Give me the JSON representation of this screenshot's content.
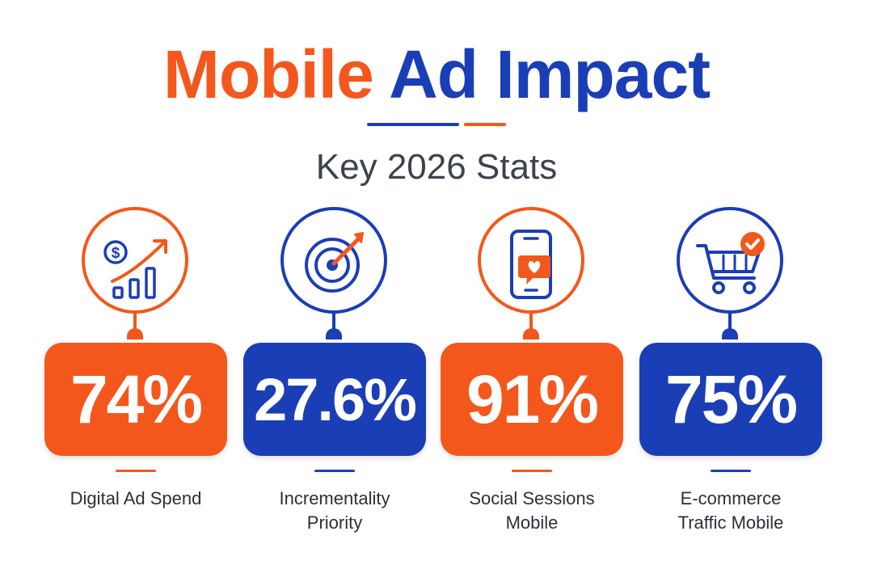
{
  "header": {
    "title_word1": "Mobile",
    "title_word2": "Ad Impact",
    "subtitle": "Key 2026 Stats"
  },
  "colors": {
    "orange": "#F4571B",
    "blue": "#1A3EB5",
    "text": "#2b3038"
  },
  "stats": [
    {
      "value": "74%",
      "label": "Digital Ad Spend",
      "icon": "dollar-growth-chart-icon",
      "color": "orange"
    },
    {
      "value": "27.6%",
      "label": "Incrementality\nPriority",
      "icon": "target-arrow-icon",
      "color": "blue"
    },
    {
      "value": "91%",
      "label": "Social Sessions\nMobile",
      "icon": "phone-heart-icon",
      "color": "orange"
    },
    {
      "value": "75%",
      "label": "E-commerce\nTraffic Mobile",
      "icon": "cart-check-icon",
      "color": "blue"
    }
  ]
}
